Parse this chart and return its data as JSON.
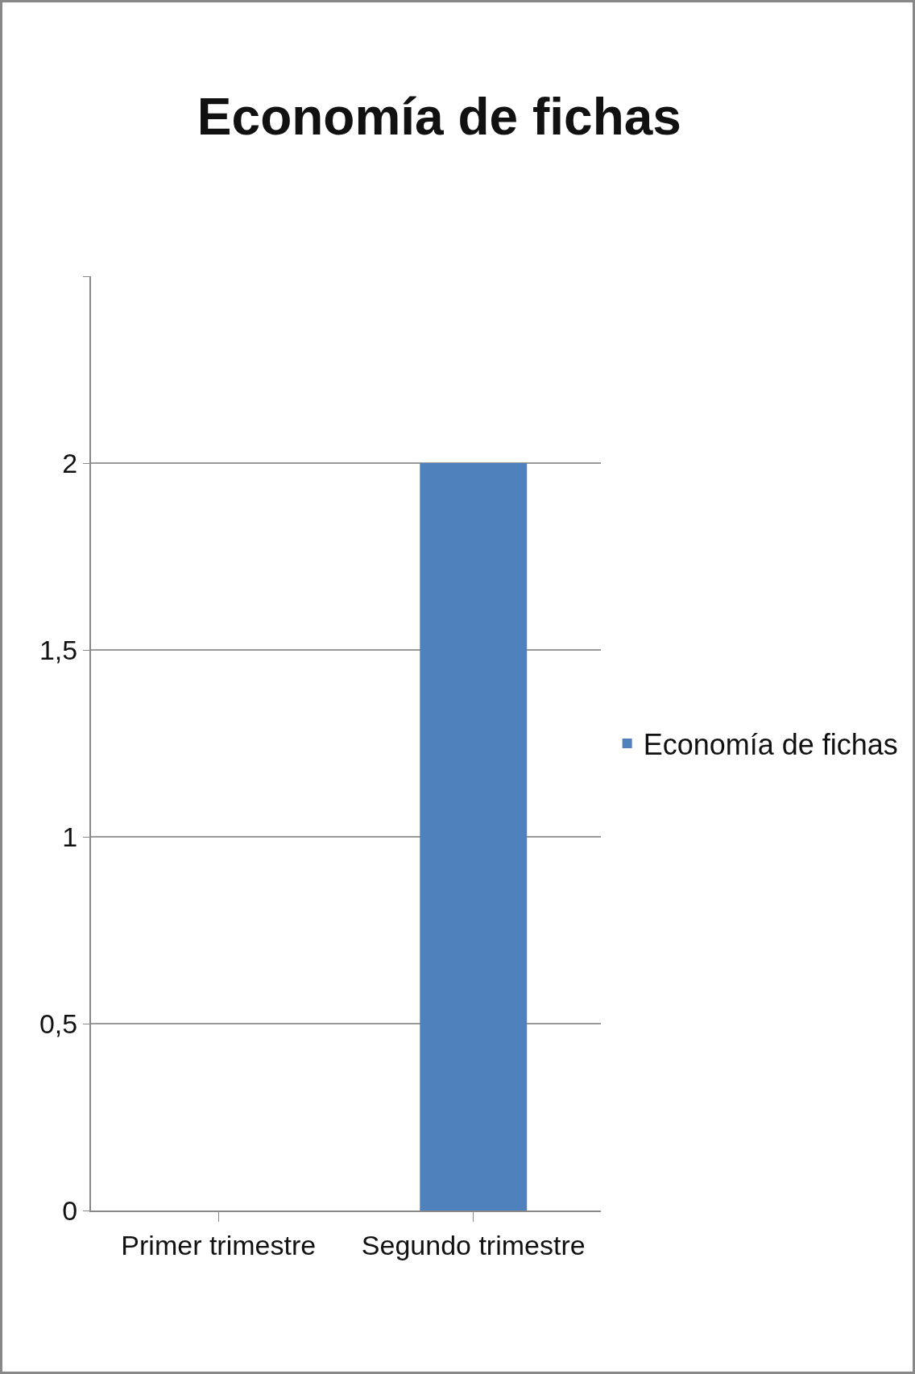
{
  "chart_data": {
    "type": "bar",
    "title": "Economía de fichas",
    "categories": [
      "Primer trimestre",
      "Segundo trimestre"
    ],
    "series": [
      {
        "name": "Economía de fichas",
        "color": "#4f81bd",
        "values": [
          0,
          2
        ]
      }
    ],
    "ylim": [
      0,
      2.5
    ],
    "yticks": [
      0,
      {
        "value": 0.5,
        "label": "0,5"
      },
      1,
      {
        "value": 1.5,
        "label": "1,5"
      },
      2,
      {
        "value": 2.5,
        "label": null
      }
    ],
    "grid": true,
    "legend": "right"
  }
}
